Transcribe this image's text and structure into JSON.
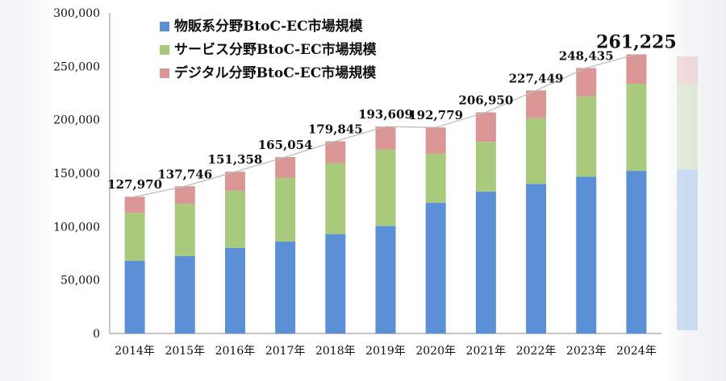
{
  "chart_data": {
    "type": "bar",
    "stacked": true,
    "categories": [
      "2014年",
      "2015年",
      "2016年",
      "2017年",
      "2018年",
      "2019年",
      "2020年",
      "2021年",
      "2022年",
      "2023年",
      "2024年"
    ],
    "series": [
      {
        "name": "物販系分野BtoC-EC市場規模",
        "color": "#5b8fd6",
        "values": [
          68043,
          72398,
          80043,
          86008,
          92992,
          100515,
          122333,
          132865,
          139997,
          146760,
          152194
        ]
      },
      {
        "name": "サービス分野BtoC-EC市場規模",
        "color": "#a9c97d",
        "values": [
          44816,
          49014,
          53532,
          59568,
          66471,
          71672,
          45832,
          46424,
          61477,
          75169,
          81522
        ]
      },
      {
        "name": "デジタル分野BtoC-EC市場規模",
        "color": "#d99694",
        "values": [
          15111,
          16334,
          17783,
          19478,
          20382,
          21422,
          24614,
          27661,
          25974,
          26506,
          27509
        ]
      }
    ],
    "totals": [
      "127,970",
      "137,746",
      "151,358",
      "165,054",
      "179,845",
      "193,609",
      "192,779",
      "206,950",
      "227,449",
      "248,435",
      "261,225"
    ],
    "yticks": [
      "0",
      "50,000",
      "100,000",
      "150,000",
      "200,000",
      "250,000",
      "300,000"
    ],
    "ylim": [
      0,
      300000
    ],
    "legend_position": "top-left"
  }
}
